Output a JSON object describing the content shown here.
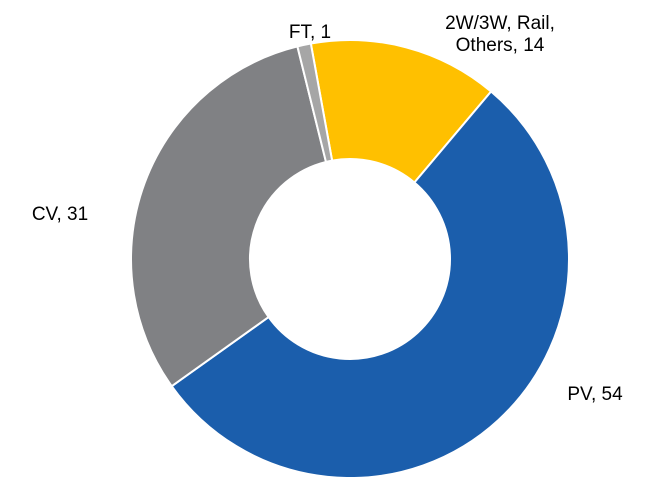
{
  "chart_data": {
    "type": "donut",
    "values": [
      14,
      54,
      31,
      1
    ],
    "value_labels": [
      [
        "2W/3W, Rail,",
        "Others, 14"
      ],
      [
        "PV, 54"
      ],
      [
        "CV, 31"
      ],
      [
        "FT, 1"
      ]
    ],
    "colors": [
      "#FFC000",
      "#1B5EAC",
      "#808184",
      "#A6A6A6"
    ]
  }
}
